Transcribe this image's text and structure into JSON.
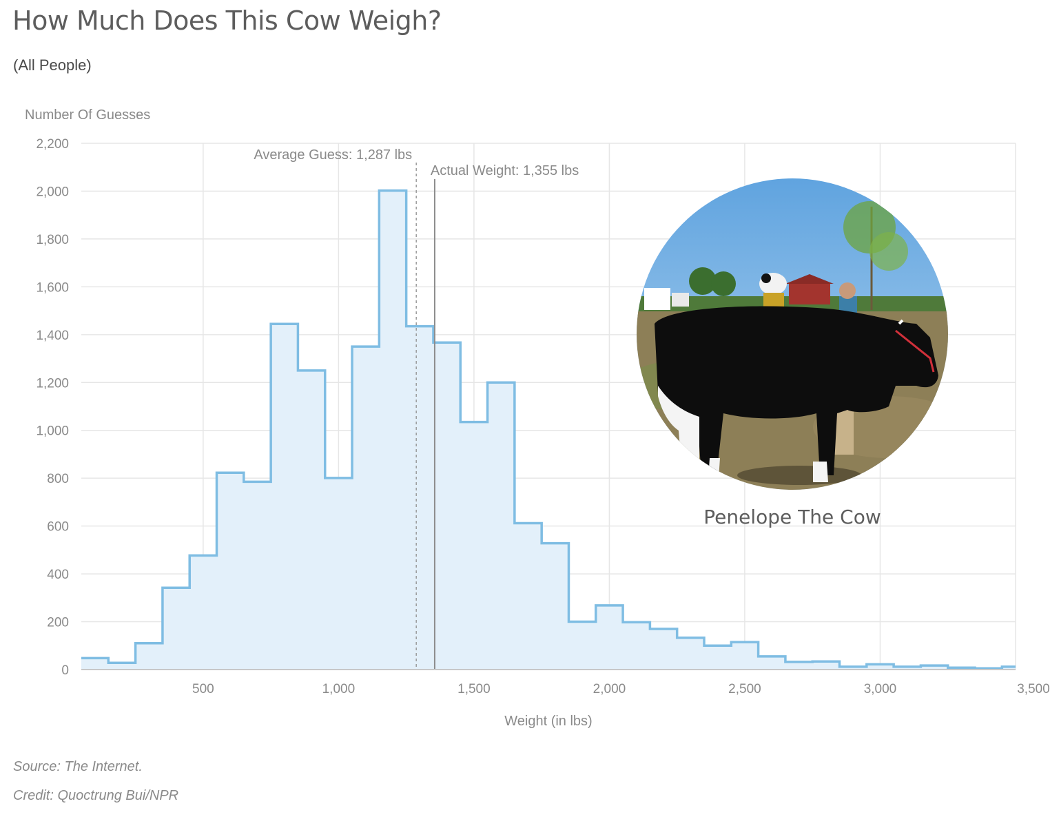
{
  "header": {
    "title": "How Much Does This Cow Weigh?",
    "subtitle": "(All People)"
  },
  "footer": {
    "source": "Source: The Internet.",
    "credit": "Credit: Quoctrung Bui/NPR"
  },
  "photo": {
    "caption": "Penelope The Cow"
  },
  "colors": {
    "series_line": "#7fbde3",
    "series_fill": "#e3f0fa",
    "grid": "#e6e6e6",
    "average_line": "#9a9a9a",
    "actual_line": "#8c8c8c"
  },
  "chart_data": {
    "type": "area",
    "step": true,
    "ylabel": "Number Of Guesses",
    "xlabel": "Weight (in lbs)",
    "xlim": [
      50,
      3500
    ],
    "ylim": [
      0,
      2200
    ],
    "x_ticks": [
      500,
      1000,
      1500,
      2000,
      2500,
      3000,
      3500
    ],
    "x_tick_labels": [
      "500",
      "1,000",
      "1,500",
      "2,000",
      "2,500",
      "3,000",
      "3,500"
    ],
    "y_ticks": [
      0,
      200,
      400,
      600,
      800,
      1000,
      1200,
      1400,
      1600,
      1800,
      2000,
      2200
    ],
    "y_tick_labels": [
      "0",
      "200",
      "400",
      "600",
      "800",
      "1,000",
      "1,200",
      "1,400",
      "1,600",
      "1,800",
      "2,000",
      "2,200"
    ],
    "grid": true,
    "bins": [
      {
        "x0": 50,
        "x1": 150,
        "y": 48
      },
      {
        "x0": 150,
        "x1": 250,
        "y": 28
      },
      {
        "x0": 250,
        "x1": 350,
        "y": 110
      },
      {
        "x0": 350,
        "x1": 450,
        "y": 342
      },
      {
        "x0": 450,
        "x1": 550,
        "y": 477
      },
      {
        "x0": 550,
        "x1": 650,
        "y": 823
      },
      {
        "x0": 650,
        "x1": 750,
        "y": 785
      },
      {
        "x0": 750,
        "x1": 850,
        "y": 1445
      },
      {
        "x0": 850,
        "x1": 950,
        "y": 1250
      },
      {
        "x0": 950,
        "x1": 1050,
        "y": 801
      },
      {
        "x0": 1050,
        "x1": 1150,
        "y": 1350
      },
      {
        "x0": 1150,
        "x1": 1250,
        "y": 2002
      },
      {
        "x0": 1250,
        "x1": 1350,
        "y": 1435
      },
      {
        "x0": 1350,
        "x1": 1450,
        "y": 1367
      },
      {
        "x0": 1450,
        "x1": 1550,
        "y": 1035
      },
      {
        "x0": 1550,
        "x1": 1650,
        "y": 1200
      },
      {
        "x0": 1650,
        "x1": 1750,
        "y": 612
      },
      {
        "x0": 1750,
        "x1": 1850,
        "y": 528
      },
      {
        "x0": 1850,
        "x1": 1950,
        "y": 200
      },
      {
        "x0": 1950,
        "x1": 2050,
        "y": 268
      },
      {
        "x0": 2050,
        "x1": 2150,
        "y": 198
      },
      {
        "x0": 2150,
        "x1": 2250,
        "y": 170
      },
      {
        "x0": 2250,
        "x1": 2350,
        "y": 133
      },
      {
        "x0": 2350,
        "x1": 2450,
        "y": 100
      },
      {
        "x0": 2450,
        "x1": 2550,
        "y": 115
      },
      {
        "x0": 2550,
        "x1": 2650,
        "y": 55
      },
      {
        "x0": 2650,
        "x1": 2750,
        "y": 32
      },
      {
        "x0": 2750,
        "x1": 2850,
        "y": 34
      },
      {
        "x0": 2850,
        "x1": 2950,
        "y": 12
      },
      {
        "x0": 2950,
        "x1": 3050,
        "y": 22
      },
      {
        "x0": 3050,
        "x1": 3150,
        "y": 12
      },
      {
        "x0": 3150,
        "x1": 3250,
        "y": 17
      },
      {
        "x0": 3250,
        "x1": 3350,
        "y": 8
      },
      {
        "x0": 3350,
        "x1": 3450,
        "y": 5
      },
      {
        "x0": 3450,
        "x1": 3500,
        "y": 12
      }
    ],
    "annotations": [
      {
        "name": "average",
        "label": "Average Guess: 1,287 lbs",
        "x": 1287,
        "style": "dashed"
      },
      {
        "name": "actual",
        "label": "Actual Weight: 1,355 lbs",
        "x": 1355,
        "style": "solid"
      }
    ]
  }
}
